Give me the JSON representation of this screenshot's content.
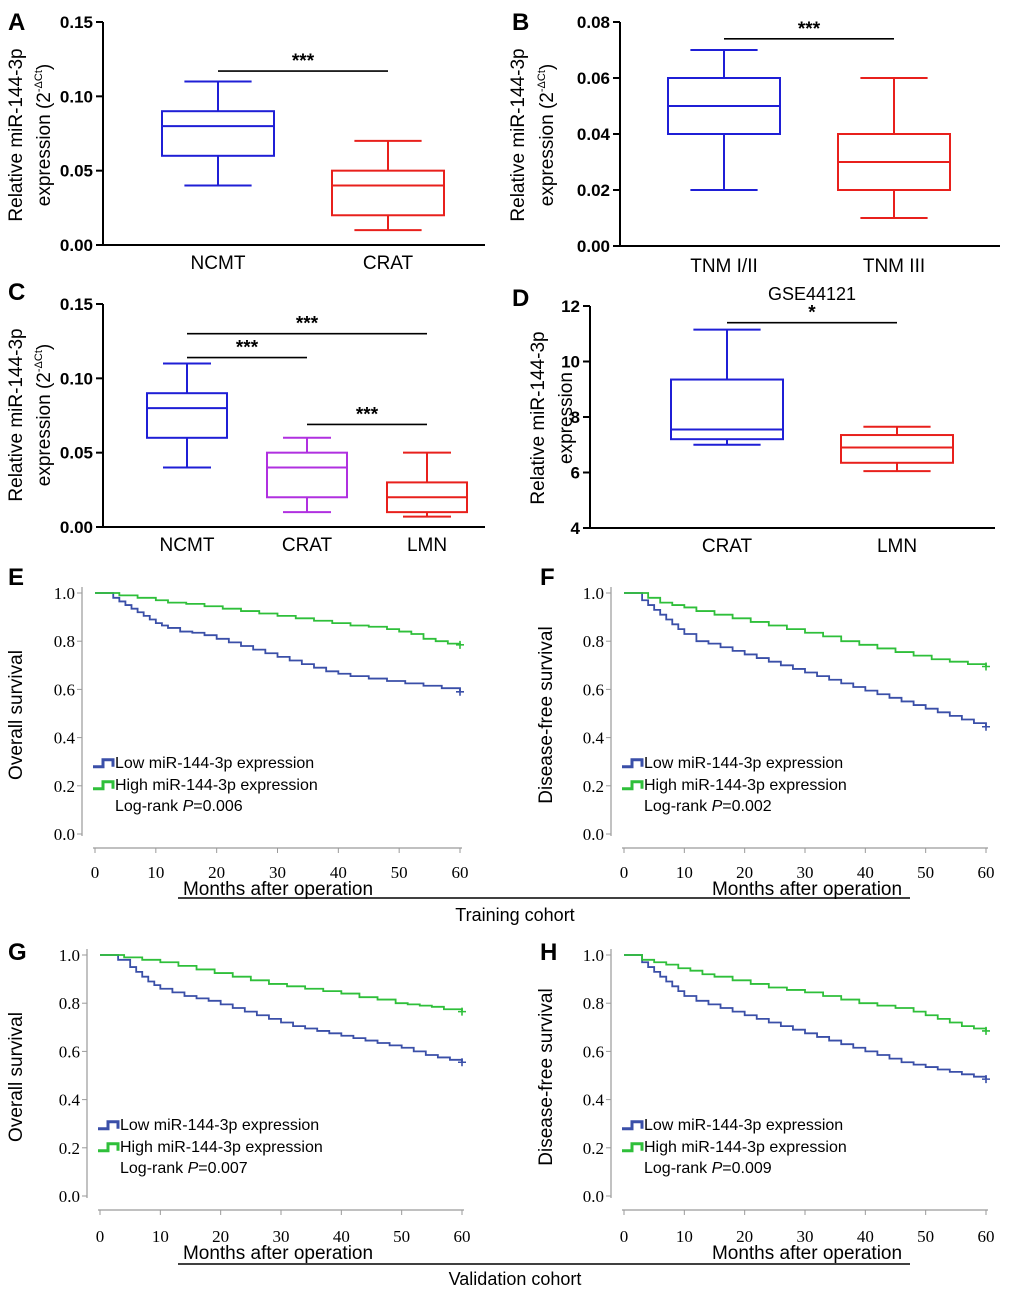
{
  "figure": {
    "cohorts": [
      {
        "id": "training",
        "label": "Training cohort"
      },
      {
        "id": "validation",
        "label": "Validation cohort"
      }
    ]
  },
  "chart_data": [
    {
      "panel": "A",
      "type": "box",
      "ylabel_main": "Relative miR-144-3p",
      "ylabel_second": "expression (2",
      "ylabel_sup": "-ΔCt",
      "ylabel_close": ")",
      "ylim": [
        0,
        0.15
      ],
      "yticks": [
        "0.00",
        "0.05",
        "0.10",
        "0.15"
      ],
      "ytick_values": [
        0,
        0.05,
        0.1,
        0.15
      ],
      "categories": [
        "NCMT",
        "CRAT"
      ],
      "colors": [
        "#1f1fd6",
        "#e8201c"
      ],
      "boxes": [
        {
          "min": 0.04,
          "q1": 0.06,
          "median": 0.08,
          "q3": 0.09,
          "max": 0.11
        },
        {
          "min": 0.01,
          "q1": 0.02,
          "median": 0.04,
          "q3": 0.05,
          "max": 0.07
        }
      ],
      "significance": [
        {
          "from": 0,
          "to": 1,
          "label": "***",
          "y": 0.117
        }
      ]
    },
    {
      "panel": "B",
      "type": "box",
      "ylabel_main": "Relative miR-144-3p",
      "ylabel_second": "expression (2",
      "ylabel_sup": "-ΔCt",
      "ylabel_close": ")",
      "ylim": [
        0,
        0.08
      ],
      "yticks": [
        "0.00",
        "0.02",
        "0.04",
        "0.06",
        "0.08"
      ],
      "ytick_values": [
        0,
        0.02,
        0.04,
        0.06,
        0.08
      ],
      "categories": [
        "TNM I/II",
        "TNM III"
      ],
      "colors": [
        "#1f1fd6",
        "#e8201c"
      ],
      "boxes": [
        {
          "min": 0.02,
          "q1": 0.04,
          "median": 0.05,
          "q3": 0.06,
          "max": 0.07
        },
        {
          "min": 0.01,
          "q1": 0.02,
          "median": 0.03,
          "q3": 0.04,
          "max": 0.06
        }
      ],
      "significance": [
        {
          "from": 0,
          "to": 1,
          "label": "***",
          "y": 0.074
        }
      ]
    },
    {
      "panel": "C",
      "type": "box",
      "ylabel_main": "Relative miR-144-3p",
      "ylabel_second": "expression (2",
      "ylabel_sup": "-ΔCt",
      "ylabel_close": ")",
      "ylim": [
        0,
        0.15
      ],
      "yticks": [
        "0.00",
        "0.05",
        "0.10",
        "0.15"
      ],
      "ytick_values": [
        0,
        0.05,
        0.1,
        0.15
      ],
      "categories": [
        "NCMT",
        "CRAT",
        "LMN"
      ],
      "colors": [
        "#1f1fd6",
        "#b030e0",
        "#e8201c"
      ],
      "boxes": [
        {
          "min": 0.04,
          "q1": 0.06,
          "median": 0.08,
          "q3": 0.09,
          "max": 0.11
        },
        {
          "min": 0.01,
          "q1": 0.02,
          "median": 0.04,
          "q3": 0.05,
          "max": 0.06
        },
        {
          "min": 0.007,
          "q1": 0.01,
          "median": 0.02,
          "q3": 0.03,
          "max": 0.05
        }
      ],
      "significance": [
        {
          "from": 0,
          "to": 2,
          "label": "***",
          "y": 0.13
        },
        {
          "from": 0,
          "to": 1,
          "label": "***",
          "y": 0.114
        },
        {
          "from": 1,
          "to": 2,
          "label": "***",
          "y": 0.069
        }
      ]
    },
    {
      "panel": "D",
      "type": "box",
      "title": "GSE44121",
      "ylabel_main": "Relative miR-144-3p",
      "ylabel_second": "expression",
      "ylim": [
        4,
        12
      ],
      "yticks": [
        "4",
        "6",
        "8",
        "10",
        "12"
      ],
      "ytick_values": [
        4,
        6,
        8,
        10,
        12
      ],
      "categories": [
        "CRAT",
        "LMN"
      ],
      "colors": [
        "#1f1fd6",
        "#e8201c"
      ],
      "boxes": [
        {
          "min": 7.0,
          "q1": 7.2,
          "median": 7.55,
          "q3": 9.35,
          "max": 11.15
        },
        {
          "min": 6.05,
          "q1": 6.35,
          "median": 6.9,
          "q3": 7.35,
          "max": 7.65
        }
      ],
      "significance": [
        {
          "from": 0,
          "to": 1,
          "label": "*",
          "y": 11.4
        }
      ]
    },
    {
      "panel": "E",
      "type": "line",
      "ylabel": "Overall survival",
      "xlabel": "Months after operation",
      "xlim": [
        0,
        60
      ],
      "ylim": [
        0,
        1
      ],
      "xticks": [
        "0",
        "10",
        "20",
        "30",
        "40",
        "50",
        "60"
      ],
      "yticks": [
        "0.0",
        "0.2",
        "0.4",
        "0.6",
        "0.8",
        "1.0"
      ],
      "legend": [
        "Low miR-144-3p expression",
        "High miR-144-3p expression"
      ],
      "logrank_label": "Log-rank ",
      "logrank_p": "P",
      "logrank_value": "=0.006",
      "series": [
        {
          "name": "Low miR-144-3p expression",
          "color": "#3a4fa8",
          "x": [
            0,
            3,
            4,
            5,
            6,
            7,
            8,
            9,
            10,
            11,
            12,
            14,
            16,
            18,
            20,
            22,
            24,
            26,
            28,
            30,
            32,
            34,
            36,
            38,
            40,
            42,
            45,
            48,
            51,
            54,
            57,
            60
          ],
          "y": [
            1.0,
            0.98,
            0.965,
            0.95,
            0.935,
            0.92,
            0.905,
            0.89,
            0.875,
            0.865,
            0.855,
            0.84,
            0.835,
            0.825,
            0.81,
            0.795,
            0.78,
            0.765,
            0.75,
            0.735,
            0.72,
            0.705,
            0.69,
            0.675,
            0.665,
            0.655,
            0.645,
            0.635,
            0.625,
            0.615,
            0.605,
            0.59
          ]
        },
        {
          "name": "High miR-144-3p expression",
          "color": "#2fbf3a",
          "x": [
            0,
            4,
            7,
            10,
            12,
            15,
            18,
            21,
            24,
            27,
            30,
            33,
            36,
            39,
            42,
            45,
            48,
            50,
            52,
            54,
            56,
            58,
            60
          ],
          "y": [
            1.0,
            0.99,
            0.98,
            0.97,
            0.96,
            0.955,
            0.945,
            0.935,
            0.925,
            0.915,
            0.905,
            0.895,
            0.885,
            0.875,
            0.865,
            0.86,
            0.85,
            0.84,
            0.83,
            0.81,
            0.8,
            0.79,
            0.785
          ]
        }
      ]
    },
    {
      "panel": "F",
      "type": "line",
      "ylabel": "Disease-free survival",
      "xlabel": "Months after operation",
      "xlim": [
        0,
        60
      ],
      "ylim": [
        0,
        1
      ],
      "xticks": [
        "0",
        "10",
        "20",
        "30",
        "40",
        "50",
        "60"
      ],
      "yticks": [
        "0.0",
        "0.2",
        "0.4",
        "0.6",
        "0.8",
        "1.0"
      ],
      "legend": [
        "Low miR-144-3p expression",
        "High miR-144-3p expression"
      ],
      "logrank_label": "Log-rank ",
      "logrank_p": "P",
      "logrank_value": "=0.002",
      "series": [
        {
          "name": "Low miR-144-3p expression",
          "color": "#3a4fa8",
          "x": [
            0,
            3,
            4,
            5,
            6,
            7,
            8,
            9,
            10,
            12,
            14,
            16,
            18,
            20,
            22,
            24,
            26,
            28,
            30,
            32,
            34,
            36,
            38,
            40,
            42,
            44,
            46,
            48,
            50,
            52,
            54,
            56,
            58,
            60
          ],
          "y": [
            1.0,
            0.97,
            0.95,
            0.93,
            0.91,
            0.89,
            0.87,
            0.85,
            0.83,
            0.8,
            0.79,
            0.775,
            0.76,
            0.745,
            0.73,
            0.715,
            0.7,
            0.685,
            0.67,
            0.655,
            0.64,
            0.625,
            0.61,
            0.595,
            0.58,
            0.565,
            0.55,
            0.535,
            0.52,
            0.505,
            0.49,
            0.475,
            0.46,
            0.445
          ]
        },
        {
          "name": "High miR-144-3p expression",
          "color": "#2fbf3a",
          "x": [
            0,
            4,
            6,
            8,
            10,
            12,
            15,
            18,
            21,
            24,
            27,
            30,
            33,
            36,
            39,
            42,
            45,
            48,
            51,
            54,
            57,
            60
          ],
          "y": [
            1.0,
            0.98,
            0.96,
            0.95,
            0.94,
            0.925,
            0.91,
            0.895,
            0.88,
            0.865,
            0.85,
            0.835,
            0.82,
            0.8,
            0.785,
            0.77,
            0.755,
            0.74,
            0.725,
            0.715,
            0.705,
            0.695
          ]
        }
      ]
    },
    {
      "panel": "G",
      "type": "line",
      "ylabel": "Overall survival",
      "xlabel": "Months after operation",
      "xlim": [
        0,
        60
      ],
      "ylim": [
        0,
        1
      ],
      "xticks": [
        "0",
        "10",
        "20",
        "30",
        "40",
        "50",
        "60"
      ],
      "yticks": [
        "0.0",
        "0.2",
        "0.4",
        "0.6",
        "0.8",
        "1.0"
      ],
      "legend": [
        "Low miR-144-3p expression",
        "High miR-144-3p expression"
      ],
      "logrank_label": "Log-rank ",
      "logrank_p": "P",
      "logrank_value": "=0.007",
      "series": [
        {
          "name": "Low miR-144-3p expression",
          "color": "#3a4fa8",
          "x": [
            0,
            3,
            5,
            6,
            7,
            8,
            9,
            10,
            12,
            14,
            16,
            18,
            20,
            22,
            24,
            26,
            28,
            30,
            32,
            34,
            36,
            38,
            40,
            42,
            44,
            46,
            48,
            50,
            52,
            54,
            56,
            58,
            60
          ],
          "y": [
            1.0,
            0.98,
            0.95,
            0.93,
            0.91,
            0.89,
            0.875,
            0.86,
            0.845,
            0.83,
            0.82,
            0.81,
            0.795,
            0.78,
            0.765,
            0.75,
            0.735,
            0.72,
            0.705,
            0.695,
            0.685,
            0.675,
            0.665,
            0.655,
            0.645,
            0.635,
            0.625,
            0.615,
            0.6,
            0.585,
            0.575,
            0.565,
            0.555
          ]
        },
        {
          "name": "High miR-144-3p expression",
          "color": "#2fbf3a",
          "x": [
            0,
            4,
            7,
            10,
            13,
            16,
            19,
            22,
            25,
            28,
            31,
            34,
            37,
            40,
            43,
            46,
            49,
            51,
            53,
            55,
            57,
            60
          ],
          "y": [
            1.0,
            0.99,
            0.98,
            0.97,
            0.955,
            0.94,
            0.925,
            0.91,
            0.895,
            0.88,
            0.87,
            0.86,
            0.85,
            0.84,
            0.825,
            0.815,
            0.8,
            0.795,
            0.79,
            0.785,
            0.775,
            0.765
          ]
        }
      ]
    },
    {
      "panel": "H",
      "type": "line",
      "ylabel": "Disease-free survival",
      "xlabel": "Months after operation",
      "xlim": [
        0,
        60
      ],
      "ylim": [
        0,
        1
      ],
      "xticks": [
        "0",
        "10",
        "20",
        "30",
        "40",
        "50",
        "60"
      ],
      "yticks": [
        "0.0",
        "0.2",
        "0.4",
        "0.6",
        "0.8",
        "1.0"
      ],
      "legend": [
        "Low miR-144-3p expression",
        "High miR-144-3p expression"
      ],
      "logrank_label": "Log-rank ",
      "logrank_p": "P",
      "logrank_value": "=0.009",
      "series": [
        {
          "name": "Low miR-144-3p expression",
          "color": "#3a4fa8",
          "x": [
            0,
            3,
            4,
            5,
            6,
            7,
            8,
            9,
            10,
            12,
            14,
            16,
            18,
            20,
            22,
            24,
            26,
            28,
            30,
            32,
            34,
            36,
            38,
            40,
            42,
            44,
            46,
            48,
            50,
            52,
            54,
            56,
            58,
            60
          ],
          "y": [
            1.0,
            0.97,
            0.95,
            0.93,
            0.91,
            0.89,
            0.87,
            0.85,
            0.83,
            0.81,
            0.795,
            0.78,
            0.765,
            0.75,
            0.735,
            0.72,
            0.705,
            0.69,
            0.675,
            0.66,
            0.645,
            0.63,
            0.615,
            0.6,
            0.585,
            0.57,
            0.555,
            0.545,
            0.535,
            0.525,
            0.515,
            0.505,
            0.495,
            0.485
          ]
        },
        {
          "name": "High miR-144-3p expression",
          "color": "#2fbf3a",
          "x": [
            0,
            3,
            5,
            7,
            9,
            11,
            13,
            15,
            18,
            21,
            24,
            27,
            30,
            33,
            36,
            39,
            42,
            45,
            48,
            50,
            52,
            54,
            56,
            58,
            60
          ],
          "y": [
            1.0,
            0.98,
            0.97,
            0.96,
            0.945,
            0.935,
            0.92,
            0.91,
            0.895,
            0.88,
            0.865,
            0.855,
            0.845,
            0.83,
            0.815,
            0.8,
            0.79,
            0.78,
            0.765,
            0.75,
            0.735,
            0.72,
            0.705,
            0.695,
            0.685
          ]
        }
      ]
    }
  ]
}
